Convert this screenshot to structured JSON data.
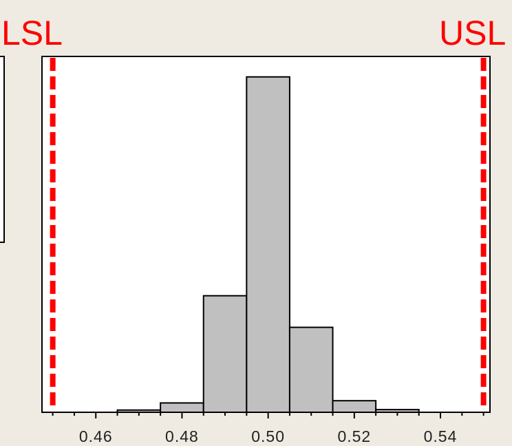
{
  "chart_data": {
    "type": "bar",
    "title": "",
    "xlabel": "",
    "ylabel": "",
    "bin_edges": [
      0.465,
      0.475,
      0.485,
      0.495,
      0.505,
      0.515,
      0.525,
      0.535
    ],
    "values": [
      0.5,
      2.1,
      26.2,
      75.4,
      19.1,
      2.6,
      0.6
    ],
    "xlim": [
      0.4475,
      0.5515
    ],
    "ylim": [
      0,
      80
    ],
    "x_ticks": [
      0.46,
      0.48,
      0.5,
      0.52,
      0.54
    ],
    "x_tick_labels": [
      "0.46",
      "0.48",
      "0.50",
      "0.52",
      "0.54"
    ],
    "grid": false,
    "bar_fill": "#c0c0c0",
    "spec_limits": [
      {
        "name": "LSL",
        "value": 0.45,
        "color": "#ff0000"
      },
      {
        "name": "USL",
        "value": 0.55,
        "color": "#ff0000"
      }
    ]
  },
  "annotations": {
    "lsl_text": "LSL",
    "usl_text": "USL"
  }
}
